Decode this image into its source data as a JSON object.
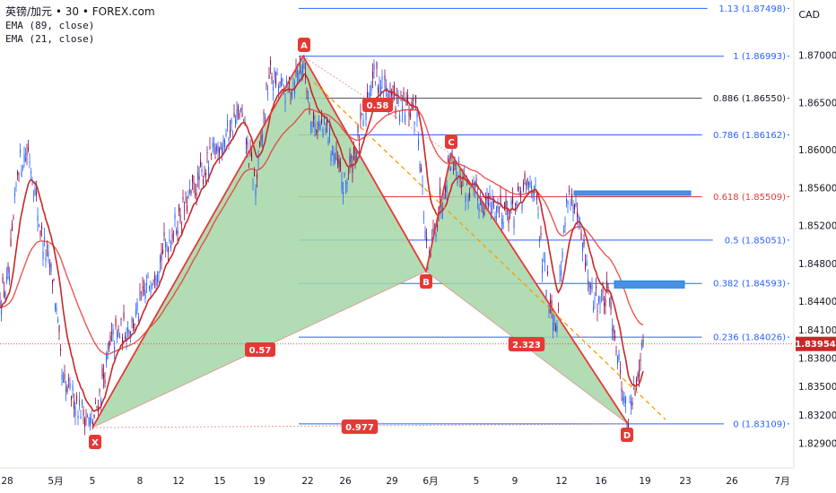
{
  "header": {
    "symbol_title": "英镑/加元 • 30 • FOREX.com",
    "indicator_1": "EMA (89, close)",
    "indicator_2": "EMA (21, close)",
    "currency": "CAD"
  },
  "chart_data": {
    "type": "candlestick",
    "y_range": [
      1.8272,
      1.8765
    ],
    "y_ticks": [
      "1.87000",
      "1.86500",
      "1.86000",
      "1.85600",
      "1.85200",
      "1.84800",
      "1.84400",
      "1.84100",
      "1.83800",
      "1.83500",
      "1.83200",
      "1.82900"
    ],
    "x_ticks": [
      "28",
      "5月",
      "5",
      "8",
      "12",
      "15",
      "19",
      "22",
      "26",
      "29",
      "6月",
      "5",
      "9",
      "12",
      "16",
      "19",
      "23",
      "26",
      "7月"
    ],
    "current_price": "1.83954",
    "fib_levels": [
      {
        "ratio": "1.13",
        "price": 1.87498,
        "label": "1.13 (1.87498)",
        "color": "#2962ff"
      },
      {
        "ratio": "1",
        "price": 1.86993,
        "label": "1 (1.86993)",
        "color": "#2962ff"
      },
      {
        "ratio": "0.886",
        "price": 1.8655,
        "label": "0.886 (1.86550)",
        "color": "#555555"
      },
      {
        "ratio": "0.786",
        "price": 1.86162,
        "label": "0.786 (1.86162)",
        "color": "#2962ff"
      },
      {
        "ratio": "0.618",
        "price": 1.85509,
        "label": "0.618 (1.85509)",
        "color": "#e53935"
      },
      {
        "ratio": "0.5",
        "price": 1.85051,
        "label": "0.5 (1.85051)",
        "color": "#2962ff"
      },
      {
        "ratio": "0.382",
        "price": 1.84593,
        "label": "0.382 (1.84593)",
        "color": "#2962ff"
      },
      {
        "ratio": "0.236",
        "price": 1.84026,
        "label": "0.236 (1.84026)",
        "color": "#2962ff"
      },
      {
        "ratio": "0",
        "price": 1.83109,
        "label": "0 (1.83109)",
        "color": "#2962ff"
      }
    ],
    "pattern_points": [
      {
        "label": "X",
        "price": 1.8307
      },
      {
        "label": "A",
        "price": 1.86993
      },
      {
        "label": "B",
        "price": 1.8472
      },
      {
        "label": "C",
        "price": 1.8596
      },
      {
        "label": "D",
        "price": 1.83109
      }
    ],
    "pattern_ratios": [
      "0.57",
      "0.58",
      "2.323",
      "0.977"
    ],
    "colors": {
      "bull": "#2962ff",
      "bear": "#880e4f",
      "ema": "#d32f2f",
      "pattern_fill": "#a5d6a7",
      "accent": "#e53935"
    }
  }
}
